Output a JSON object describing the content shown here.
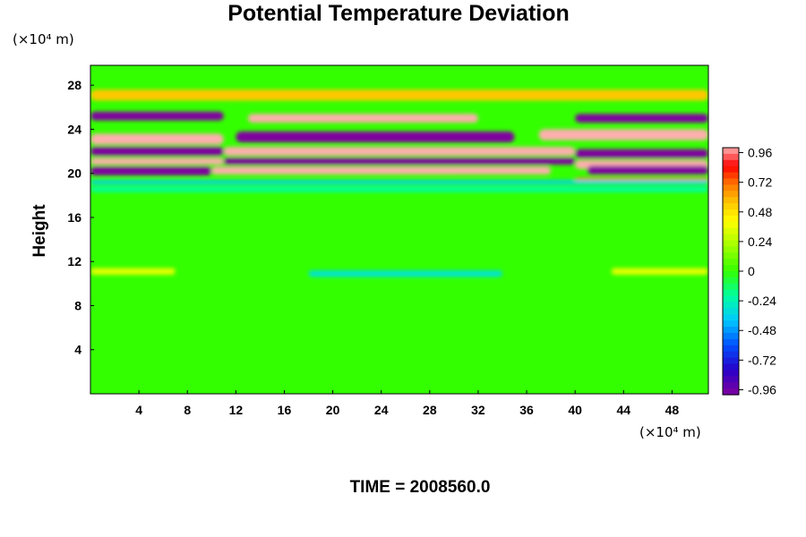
{
  "chart_data": {
    "type": "heatmap",
    "title": "Potential Temperature Deviation",
    "ylabel": "Height",
    "x_unit_text": "(×10⁴ m)",
    "y_unit_text": "(×10⁴ m)",
    "xlim": [
      0,
      51
    ],
    "ylim": [
      0,
      29.8
    ],
    "xticks": [
      4,
      8,
      12,
      16,
      20,
      24,
      28,
      32,
      36,
      40,
      44,
      48
    ],
    "yticks": [
      4,
      8,
      12,
      16,
      20,
      24,
      28
    ],
    "colorbar": {
      "range": [
        -1.0,
        1.0
      ],
      "ticks": [
        0.96,
        0.72,
        0.48,
        0.24,
        0,
        -0.24,
        -0.48,
        -0.72,
        -0.96
      ],
      "tick_labels": [
        "0.96",
        "0.72",
        "0.48",
        "0.24",
        "0",
        "-0.24",
        "-0.48",
        "-0.72",
        "-0.96"
      ]
    },
    "background_value": 0,
    "bands": [
      {
        "x": [
          0,
          51
        ],
        "y": [
          26.6,
          27.6
        ],
        "value": 0.55
      },
      {
        "x": [
          0,
          11
        ],
        "y": [
          24.8,
          25.6
        ],
        "value": -1.0
      },
      {
        "x": [
          13,
          32
        ],
        "y": [
          24.6,
          25.4
        ],
        "value": 1.0
      },
      {
        "x": [
          40,
          51
        ],
        "y": [
          24.6,
          25.4
        ],
        "value": -1.0
      },
      {
        "x": [
          0,
          11
        ],
        "y": [
          22.6,
          23.6
        ],
        "value": 1.0
      },
      {
        "x": [
          12,
          35
        ],
        "y": [
          22.8,
          23.8
        ],
        "value": -1.0
      },
      {
        "x": [
          37,
          51
        ],
        "y": [
          23.0,
          24.0
        ],
        "value": 1.0
      },
      {
        "x": [
          0,
          11
        ],
        "y": [
          21.6,
          22.4
        ],
        "value": -1.0
      },
      {
        "x": [
          11,
          40
        ],
        "y": [
          21.6,
          22.4
        ],
        "value": 1.0
      },
      {
        "x": [
          40,
          51
        ],
        "y": [
          21.4,
          22.2
        ],
        "value": -1.0
      },
      {
        "x": [
          0,
          11
        ],
        "y": [
          20.8,
          21.4
        ],
        "value": 1.0
      },
      {
        "x": [
          11,
          40
        ],
        "y": [
          20.8,
          21.4
        ],
        "value": -1.0
      },
      {
        "x": [
          40,
          51
        ],
        "y": [
          20.4,
          21.2
        ],
        "value": 1.0
      },
      {
        "x": [
          0,
          10
        ],
        "y": [
          19.8,
          20.6
        ],
        "value": -1.0
      },
      {
        "x": [
          10,
          38
        ],
        "y": [
          19.9,
          20.6
        ],
        "value": 1.0
      },
      {
        "x": [
          41,
          51
        ],
        "y": [
          19.9,
          20.7
        ],
        "value": -1.0
      },
      {
        "x": [
          40,
          51
        ],
        "y": [
          19.2,
          19.6
        ],
        "value": 0.7
      },
      {
        "x": [
          0,
          51
        ],
        "y": [
          19.0,
          19.4
        ],
        "value": -0.35
      },
      {
        "x": [
          0,
          51
        ],
        "y": [
          18.3,
          18.8
        ],
        "value": -0.2
      },
      {
        "x": [
          0,
          7
        ],
        "y": [
          10.8,
          11.4
        ],
        "value": 0.35
      },
      {
        "x": [
          18,
          34
        ],
        "y": [
          10.6,
          11.2
        ],
        "value": -0.3
      },
      {
        "x": [
          43,
          51
        ],
        "y": [
          10.8,
          11.4
        ],
        "value": 0.35
      }
    ],
    "time_label": "TIME = 2008560.0"
  }
}
